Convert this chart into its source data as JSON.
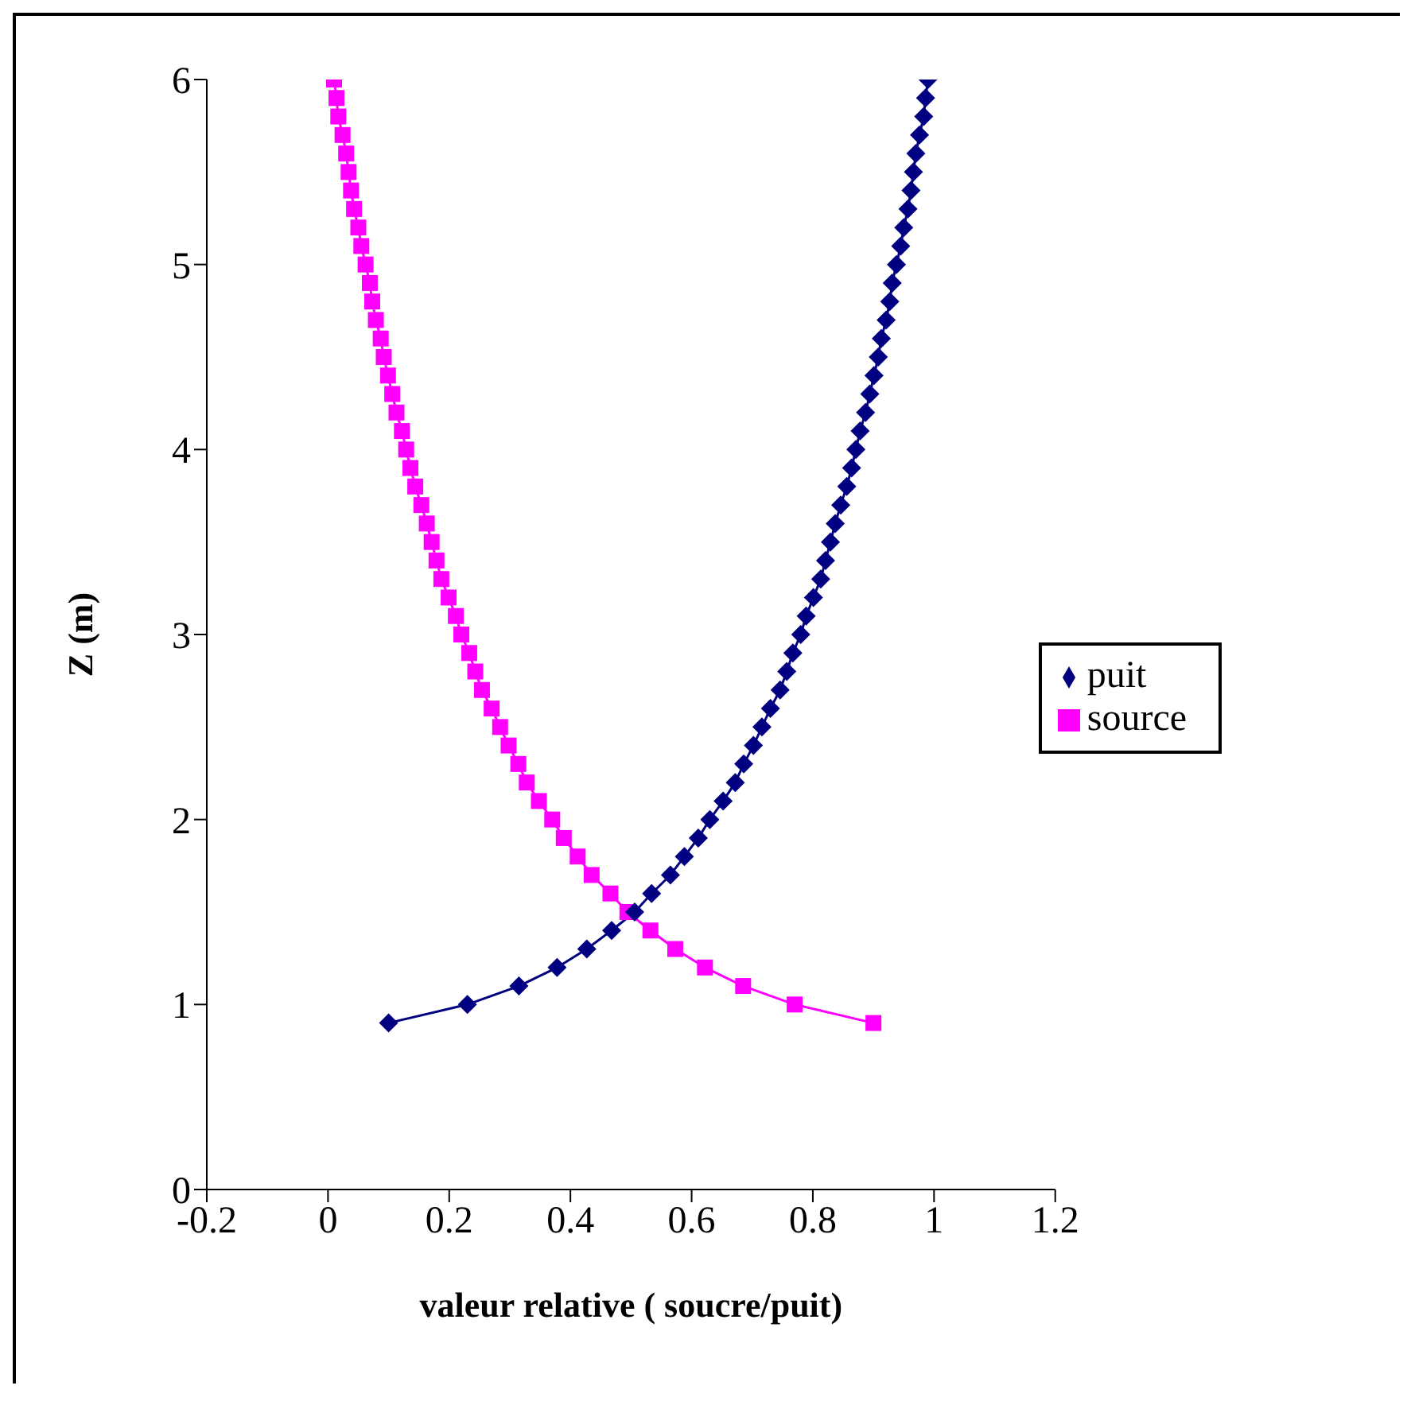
{
  "chart_data": {
    "type": "line",
    "xlabel": "valeur relative ( soucre/puit)",
    "ylabel": "Z (m)",
    "xlim": [
      -0.2,
      1.2
    ],
    "xticks": [
      -0.2,
      0,
      0.2,
      0.4,
      0.6,
      0.8,
      1,
      1.2
    ],
    "ylim": [
      0,
      6
    ],
    "yticks": [
      0,
      1,
      2,
      3,
      4,
      5,
      6
    ],
    "grid": false,
    "legend": "right",
    "line_style": "solid",
    "series": [
      {
        "name": "puit",
        "color": "#000080",
        "marker": "diamond",
        "x": [
          0.1,
          0.23,
          0.315,
          0.378,
          0.427,
          0.468,
          0.506,
          0.534,
          0.565,
          0.588,
          0.611,
          0.63,
          0.652,
          0.672,
          0.686,
          0.702,
          0.716,
          0.73,
          0.746,
          0.757,
          0.767,
          0.78,
          0.789,
          0.801,
          0.813,
          0.821,
          0.829,
          0.837,
          0.846,
          0.856,
          0.864,
          0.871,
          0.878,
          0.887,
          0.894,
          0.901,
          0.908,
          0.913,
          0.921,
          0.927,
          0.931,
          0.938,
          0.945,
          0.95,
          0.957,
          0.962,
          0.966,
          0.97,
          0.976,
          0.983,
          0.986,
          0.99
        ],
        "values": [
          0.9,
          1.0,
          1.1,
          1.2,
          1.3,
          1.4,
          1.5,
          1.6,
          1.7,
          1.8,
          1.9,
          2.0,
          2.1,
          2.2,
          2.3,
          2.4,
          2.5,
          2.6,
          2.7,
          2.8,
          2.9,
          3.0,
          3.1,
          3.2,
          3.3,
          3.4,
          3.5,
          3.6,
          3.7,
          3.8,
          3.9,
          4.0,
          4.1,
          4.2,
          4.3,
          4.4,
          4.5,
          4.6,
          4.7,
          4.8,
          4.9,
          5.0,
          5.1,
          5.2,
          5.3,
          5.4,
          5.5,
          5.6,
          5.7,
          5.8,
          5.9,
          6.0
        ]
      },
      {
        "name": "source",
        "color": "#ff00ff",
        "marker": "square",
        "x": [
          0.9,
          0.77,
          0.685,
          0.622,
          0.573,
          0.532,
          0.494,
          0.466,
          0.435,
          0.412,
          0.389,
          0.37,
          0.348,
          0.328,
          0.314,
          0.298,
          0.284,
          0.27,
          0.254,
          0.243,
          0.233,
          0.22,
          0.211,
          0.199,
          0.187,
          0.179,
          0.171,
          0.163,
          0.154,
          0.144,
          0.136,
          0.129,
          0.122,
          0.113,
          0.106,
          0.099,
          0.092,
          0.087,
          0.079,
          0.073,
          0.069,
          0.062,
          0.055,
          0.05,
          0.043,
          0.038,
          0.034,
          0.03,
          0.024,
          0.017,
          0.014,
          0.01
        ],
        "values": [
          0.9,
          1.0,
          1.1,
          1.2,
          1.3,
          1.4,
          1.5,
          1.6,
          1.7,
          1.8,
          1.9,
          2.0,
          2.1,
          2.2,
          2.3,
          2.4,
          2.5,
          2.6,
          2.7,
          2.8,
          2.9,
          3.0,
          3.1,
          3.2,
          3.3,
          3.4,
          3.5,
          3.6,
          3.7,
          3.8,
          3.9,
          4.0,
          4.1,
          4.2,
          4.3,
          4.4,
          4.5,
          4.6,
          4.7,
          4.8,
          4.9,
          5.0,
          5.1,
          5.2,
          5.3,
          5.4,
          5.5,
          5.6,
          5.7,
          5.8,
          5.9,
          6.0
        ]
      }
    ]
  }
}
